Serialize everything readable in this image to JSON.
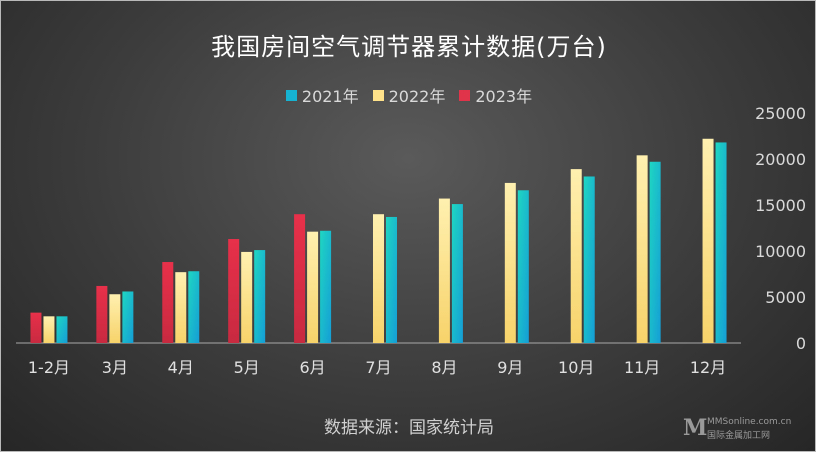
{
  "chart_data": {
    "type": "bar",
    "title": "我国房间空气调节器累计数据(万台)",
    "categories": [
      "1-2月",
      "3月",
      "4月",
      "5月",
      "6月",
      "7月",
      "8月",
      "9月",
      "10月",
      "11月",
      "12月"
    ],
    "series": [
      {
        "name": "2023年",
        "color": "#e0344a",
        "values": [
          3300,
          6200,
          8800,
          11300,
          14000,
          null,
          null,
          null,
          null,
          null,
          null
        ]
      },
      {
        "name": "2022年",
        "color": "#ffe28a",
        "values": [
          2900,
          5300,
          7700,
          9900,
          12100,
          14000,
          15700,
          17400,
          18900,
          20400,
          22200
        ]
      },
      {
        "name": "2021年",
        "color": "#17b3d3",
        "values": [
          2900,
          5600,
          7800,
          10100,
          12200,
          13700,
          15100,
          16600,
          18100,
          19700,
          21800
        ]
      }
    ],
    "legend_order": [
      "2021年",
      "2022年",
      "2023年"
    ],
    "ylim": [
      0,
      25000
    ],
    "yticks": [
      0,
      5000,
      10000,
      15000,
      20000,
      25000
    ],
    "y_axis_position": "right",
    "legend_position": "top",
    "grid": false
  },
  "source_text": "数据来源：国家统计局",
  "watermark": {
    "letter": "M",
    "site": "MMSonline.com.cn",
    "name": "国际金属加工网"
  }
}
